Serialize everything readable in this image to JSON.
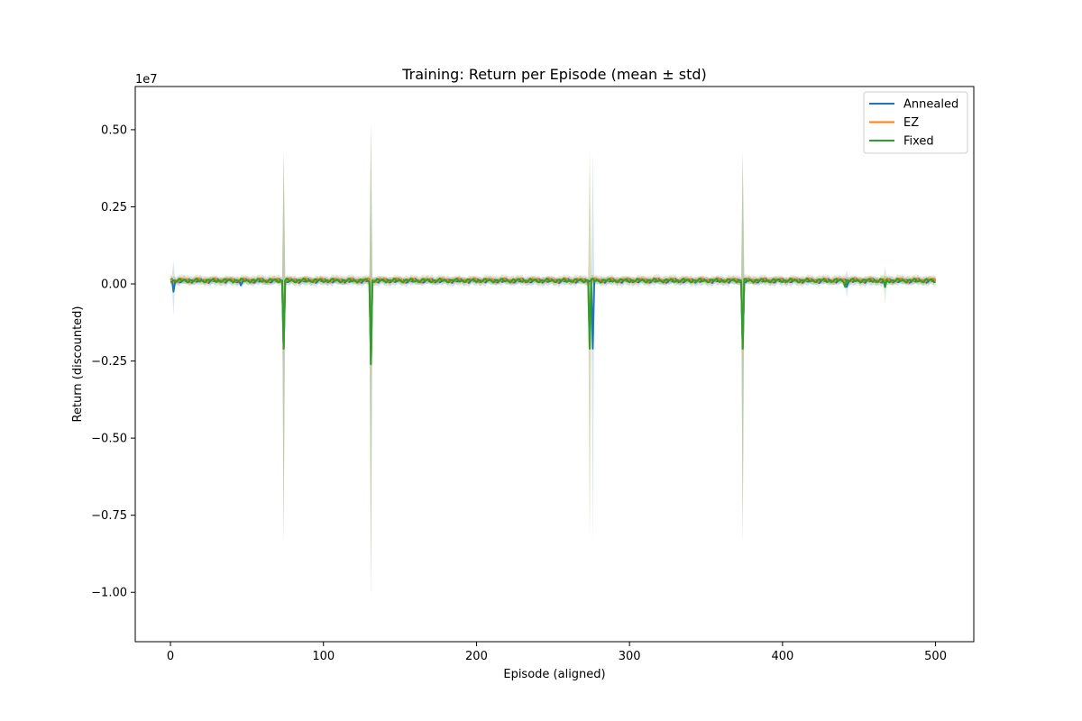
{
  "chart_data": {
    "type": "line",
    "title": "Training: Return per Episode (mean ± std)",
    "xlabel": "Episode (aligned)",
    "ylabel": "Return (discounted)",
    "y_scale_label": "1e7",
    "xlim": [
      -23,
      525
    ],
    "ylim": [
      -11600000,
      6400000
    ],
    "x_ticks": [
      0,
      100,
      200,
      300,
      400,
      500
    ],
    "x_tick_labels": [
      "0",
      "100",
      "200",
      "300",
      "400",
      "500"
    ],
    "y_ticks": [
      5000000,
      2500000,
      0,
      -2500000,
      -5000000,
      -7500000,
      -10000000
    ],
    "y_tick_labels": [
      "0.50",
      "0.25",
      "0.00",
      "−0.25",
      "−0.50",
      "−0.75",
      "−1.00"
    ],
    "grid": false,
    "legend_position": "upper-right",
    "series": [
      {
        "name": "Annealed",
        "color": "#1f77b4",
        "baseline": 100000,
        "dips": [
          [
            2,
            -250000
          ],
          [
            46,
            -50000
          ],
          [
            74,
            -2100000
          ],
          [
            131,
            -2600000
          ],
          [
            276,
            -2100000
          ],
          [
            374,
            -2100000
          ],
          [
            442,
            -100000
          ],
          [
            467,
            -100000
          ]
        ],
        "bands": [
          [
            2,
            -1050000,
            750000
          ],
          [
            74,
            -8400000,
            4300000
          ],
          [
            131,
            -10200000,
            5200000
          ],
          [
            276,
            -8400000,
            4300000
          ],
          [
            374,
            -8400000,
            4300000
          ],
          [
            442,
            -450000,
            450000
          ]
        ]
      },
      {
        "name": "EZ",
        "color": "#ff7f0e",
        "baseline": 120000,
        "dips": [
          [
            74,
            -2100000
          ],
          [
            131,
            -2600000
          ],
          [
            274,
            -2100000
          ],
          [
            374,
            -2100000
          ]
        ],
        "bands": [
          [
            74,
            -8400000,
            4300000
          ],
          [
            131,
            -10200000,
            5200000
          ],
          [
            274,
            -8400000,
            4300000
          ],
          [
            374,
            -8400000,
            4300000
          ]
        ]
      },
      {
        "name": "Fixed",
        "color": "#2ca02c",
        "baseline": 110000,
        "dips": [
          [
            74,
            -2100000
          ],
          [
            131,
            -2600000
          ],
          [
            274,
            -2100000
          ],
          [
            374,
            -2100000
          ],
          [
            441,
            -100000
          ],
          [
            467,
            -100000
          ]
        ],
        "bands": [
          [
            74,
            -8400000,
            4300000
          ],
          [
            131,
            -10200000,
            5200000
          ],
          [
            274,
            -8400000,
            4300000
          ],
          [
            374,
            -8400000,
            4300000
          ],
          [
            467,
            -650000,
            550000
          ]
        ]
      }
    ],
    "x_range": [
      0,
      500
    ]
  }
}
